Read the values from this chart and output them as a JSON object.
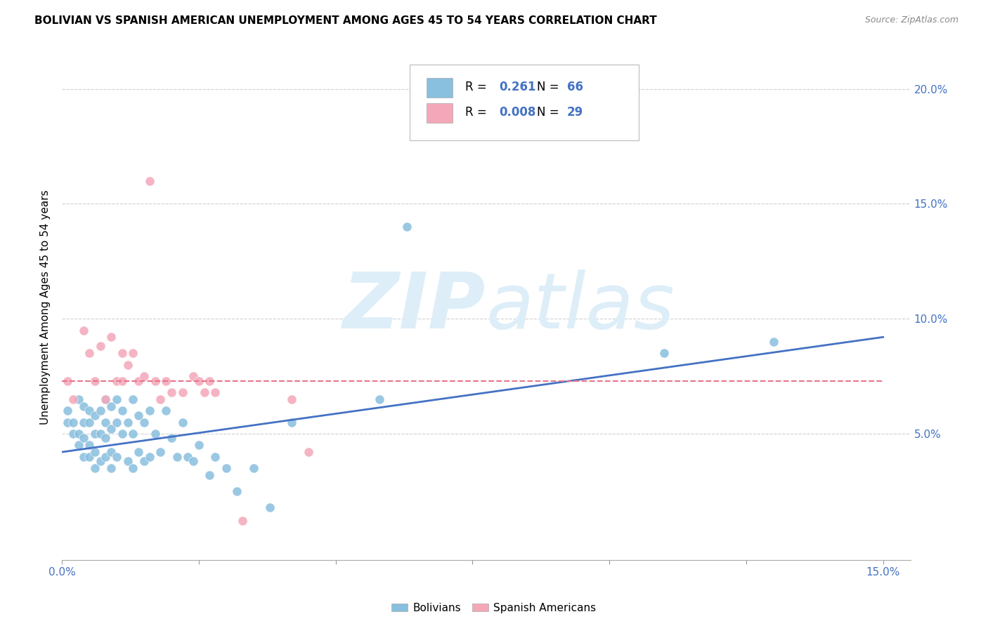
{
  "title": "BOLIVIAN VS SPANISH AMERICAN UNEMPLOYMENT AMONG AGES 45 TO 54 YEARS CORRELATION CHART",
  "source": "Source: ZipAtlas.com",
  "ylabel": "Unemployment Among Ages 45 to 54 years",
  "xlim": [
    0.0,
    0.155
  ],
  "ylim": [
    -0.005,
    0.215
  ],
  "xticks": [
    0.0,
    0.025,
    0.05,
    0.075,
    0.1,
    0.125,
    0.15
  ],
  "yticks": [
    0.0,
    0.05,
    0.1,
    0.15,
    0.2
  ],
  "ytick_right_labels": [
    "",
    "5.0%",
    "10.0%",
    "15.0%",
    "20.0%"
  ],
  "xtick_labels": [
    "0.0%",
    "",
    "",
    "",
    "",
    "",
    "15.0%"
  ],
  "blue_color": "#89bfdf",
  "pink_color": "#f4a7b9",
  "blue_line_color": "#4472c4",
  "pink_line_color": "#e8748a",
  "grid_color": "#d0d0d0",
  "R_blue": "0.261",
  "N_blue": "66",
  "R_pink": "0.008",
  "N_pink": "29",
  "blue_scatter_x": [
    0.001,
    0.001,
    0.002,
    0.002,
    0.003,
    0.003,
    0.003,
    0.004,
    0.004,
    0.004,
    0.004,
    0.005,
    0.005,
    0.005,
    0.005,
    0.006,
    0.006,
    0.006,
    0.006,
    0.007,
    0.007,
    0.007,
    0.008,
    0.008,
    0.008,
    0.008,
    0.009,
    0.009,
    0.009,
    0.009,
    0.01,
    0.01,
    0.01,
    0.011,
    0.011,
    0.012,
    0.012,
    0.013,
    0.013,
    0.013,
    0.014,
    0.014,
    0.015,
    0.015,
    0.016,
    0.016,
    0.017,
    0.018,
    0.019,
    0.02,
    0.021,
    0.022,
    0.023,
    0.024,
    0.025,
    0.027,
    0.028,
    0.03,
    0.032,
    0.035,
    0.038,
    0.042,
    0.058,
    0.063,
    0.11,
    0.13
  ],
  "blue_scatter_y": [
    0.055,
    0.06,
    0.05,
    0.055,
    0.045,
    0.05,
    0.065,
    0.04,
    0.048,
    0.055,
    0.062,
    0.04,
    0.045,
    0.055,
    0.06,
    0.035,
    0.042,
    0.05,
    0.058,
    0.038,
    0.05,
    0.06,
    0.04,
    0.048,
    0.055,
    0.065,
    0.035,
    0.042,
    0.052,
    0.062,
    0.04,
    0.055,
    0.065,
    0.05,
    0.06,
    0.038,
    0.055,
    0.035,
    0.05,
    0.065,
    0.042,
    0.058,
    0.038,
    0.055,
    0.04,
    0.06,
    0.05,
    0.042,
    0.06,
    0.048,
    0.04,
    0.055,
    0.04,
    0.038,
    0.045,
    0.032,
    0.04,
    0.035,
    0.025,
    0.035,
    0.018,
    0.055,
    0.065,
    0.14,
    0.085,
    0.09
  ],
  "pink_scatter_x": [
    0.001,
    0.002,
    0.004,
    0.005,
    0.006,
    0.007,
    0.008,
    0.009,
    0.01,
    0.011,
    0.011,
    0.012,
    0.013,
    0.014,
    0.015,
    0.016,
    0.017,
    0.018,
    0.019,
    0.02,
    0.022,
    0.024,
    0.025,
    0.026,
    0.027,
    0.028,
    0.033,
    0.042,
    0.045
  ],
  "pink_scatter_y": [
    0.073,
    0.065,
    0.095,
    0.085,
    0.073,
    0.088,
    0.065,
    0.092,
    0.073,
    0.073,
    0.085,
    0.08,
    0.085,
    0.073,
    0.075,
    0.16,
    0.073,
    0.065,
    0.073,
    0.068,
    0.068,
    0.075,
    0.073,
    0.068,
    0.073,
    0.068,
    0.012,
    0.065,
    0.042
  ],
  "blue_trend_x0": 0.0,
  "blue_trend_x1": 0.15,
  "blue_trend_y0": 0.042,
  "blue_trend_y1": 0.092,
  "pink_trend_x0": 0.0,
  "pink_trend_x1": 0.15,
  "pink_trend_y0": 0.073,
  "pink_trend_y1": 0.073,
  "background_color": "#ffffff",
  "tick_color": "#4472c4",
  "axis_label_color": "#000000",
  "legend_R_N_color": "#4472c4",
  "legend_text_color": "#000000",
  "source_color": "#888888"
}
